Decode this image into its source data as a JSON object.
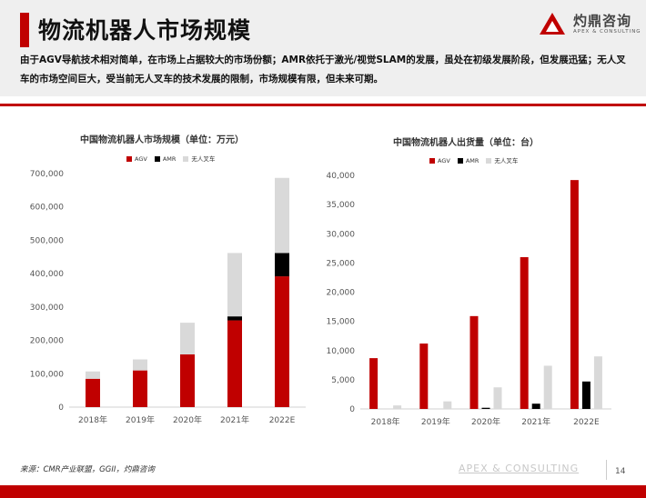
{
  "header": {
    "title": "物流机器人市场规模",
    "description": "由于AGV导航技术相对简单，在市场上占据较大的市场份额；AMR依托于激光/视觉SLAM的发展，虽处在初级发展阶段，但发展迅猛；无人叉车的市场空间巨大，受当前无人叉车的技术发展的限制，市场规模有限，但未来可期。"
  },
  "logo": {
    "name": "灼鼎咨询",
    "subtitle": "APEX & CONSULTING"
  },
  "colors": {
    "agv": "#c00000",
    "amr": "#000000",
    "forklift": "#d9d9d9",
    "accent": "#c00000"
  },
  "chart_data": [
    {
      "type": "bar",
      "stacked": true,
      "title": "中国物流机器人市场规模（单位：万元）",
      "categories": [
        "2018年",
        "2019年",
        "2020年",
        "2021年",
        "2022E"
      ],
      "series": [
        {
          "name": "AGV",
          "values": [
            85000,
            110000,
            158000,
            260000,
            392000
          ]
        },
        {
          "name": "AMR",
          "values": [
            0,
            0,
            0,
            12000,
            70000
          ]
        },
        {
          "name": "无人叉车",
          "values": [
            22000,
            33000,
            95000,
            190000,
            225000
          ]
        }
      ],
      "ylim": [
        0,
        700000
      ],
      "yticks": [
        "0",
        "100,000",
        "200,000",
        "300,000",
        "400,000",
        "500,000",
        "600,000",
        "700,000"
      ],
      "legend": "top",
      "grid": false
    },
    {
      "type": "bar",
      "stacked": false,
      "title": "中国物流机器人出货量（单位：台）",
      "categories": [
        "2018年",
        "2019年",
        "2020年",
        "2021年",
        "2022E"
      ],
      "series": [
        {
          "name": "AGV",
          "values": [
            8700,
            11200,
            15900,
            26000,
            39200
          ]
        },
        {
          "name": "AMR",
          "values": [
            0,
            0,
            200,
            900,
            4700
          ]
        },
        {
          "name": "无人叉车",
          "values": [
            600,
            1300,
            3700,
            7400,
            9000
          ]
        }
      ],
      "ylim": [
        0,
        40000
      ],
      "yticks": [
        "0",
        "5,000",
        "10,000",
        "15,000",
        "20,000",
        "25,000",
        "30,000",
        "35,000",
        "40,000"
      ],
      "legend": "top",
      "grid": false
    }
  ],
  "footer": {
    "source": "来源：CMR产业联盟，GGII，灼鼎咨询",
    "brand": "APEX & CONSULTING",
    "page": "14"
  }
}
